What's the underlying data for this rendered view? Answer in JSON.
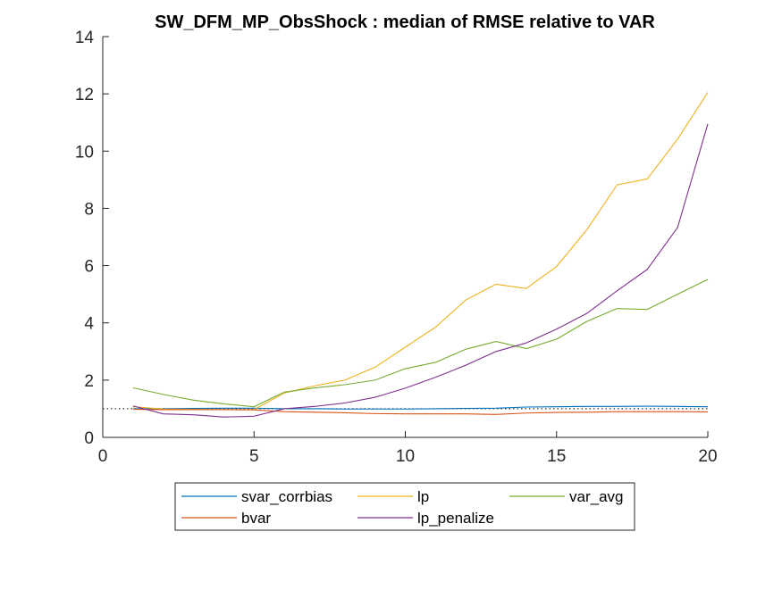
{
  "chart_data": {
    "type": "line",
    "title": "SW_DFM_MP_ObsShock : median of RMSE relative to VAR",
    "xlabel": "",
    "ylabel": "",
    "xlim": [
      0,
      20
    ],
    "ylim": [
      0,
      14
    ],
    "x_ticks": [
      0,
      5,
      10,
      15,
      20
    ],
    "y_ticks": [
      0,
      2,
      4,
      6,
      8,
      10,
      12,
      14
    ],
    "x": [
      1,
      2,
      3,
      4,
      5,
      6,
      7,
      8,
      9,
      10,
      11,
      12,
      13,
      14,
      15,
      16,
      17,
      18,
      19,
      20
    ],
    "reference_line": {
      "y": 1,
      "style": "dotted",
      "color": "#000000"
    },
    "grid": false,
    "legend_placement": "bottom-outside",
    "legend_columns": 3,
    "series": [
      {
        "name": "svar_corrbias",
        "color": "#0072BD",
        "values": [
          1.0,
          1.0,
          1.01,
          1.02,
          1.02,
          1.0,
          1.0,
          0.99,
          0.99,
          0.99,
          1.0,
          1.01,
          1.02,
          1.06,
          1.07,
          1.08,
          1.08,
          1.09,
          1.08,
          1.07
        ]
      },
      {
        "name": "lp",
        "color": "#EDB120",
        "values": [
          1.07,
          0.99,
          0.98,
          0.97,
          0.97,
          1.55,
          1.8,
          2.0,
          2.45,
          3.15,
          3.85,
          4.8,
          5.35,
          5.2,
          5.97,
          7.25,
          8.82,
          9.03,
          10.42,
          12.05
        ]
      },
      {
        "name": "var_avg",
        "color": "#77AC30",
        "values": [
          1.73,
          1.5,
          1.3,
          1.17,
          1.07,
          1.58,
          1.73,
          1.84,
          2.0,
          2.4,
          2.62,
          3.08,
          3.35,
          3.1,
          3.43,
          4.05,
          4.5,
          4.47,
          5.0,
          5.52
        ]
      },
      {
        "name": "bvar",
        "color": "#D95319",
        "values": [
          0.98,
          0.97,
          0.97,
          0.97,
          0.96,
          0.9,
          0.88,
          0.86,
          0.83,
          0.82,
          0.82,
          0.82,
          0.8,
          0.85,
          0.87,
          0.88,
          0.9,
          0.9,
          0.9,
          0.89
        ]
      },
      {
        "name": "lp_penalize",
        "color": "#7E2F8E",
        "values": [
          1.1,
          0.82,
          0.79,
          0.71,
          0.74,
          1.0,
          1.08,
          1.2,
          1.4,
          1.72,
          2.1,
          2.52,
          3.0,
          3.3,
          3.78,
          4.33,
          5.12,
          5.87,
          7.33,
          10.95
        ]
      }
    ]
  }
}
